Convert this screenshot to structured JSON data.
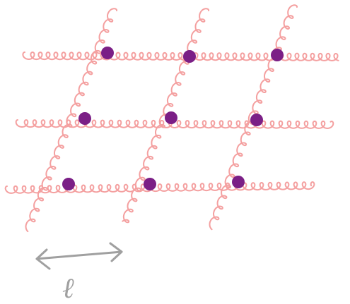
{
  "scale_label": "ℓ"
}
